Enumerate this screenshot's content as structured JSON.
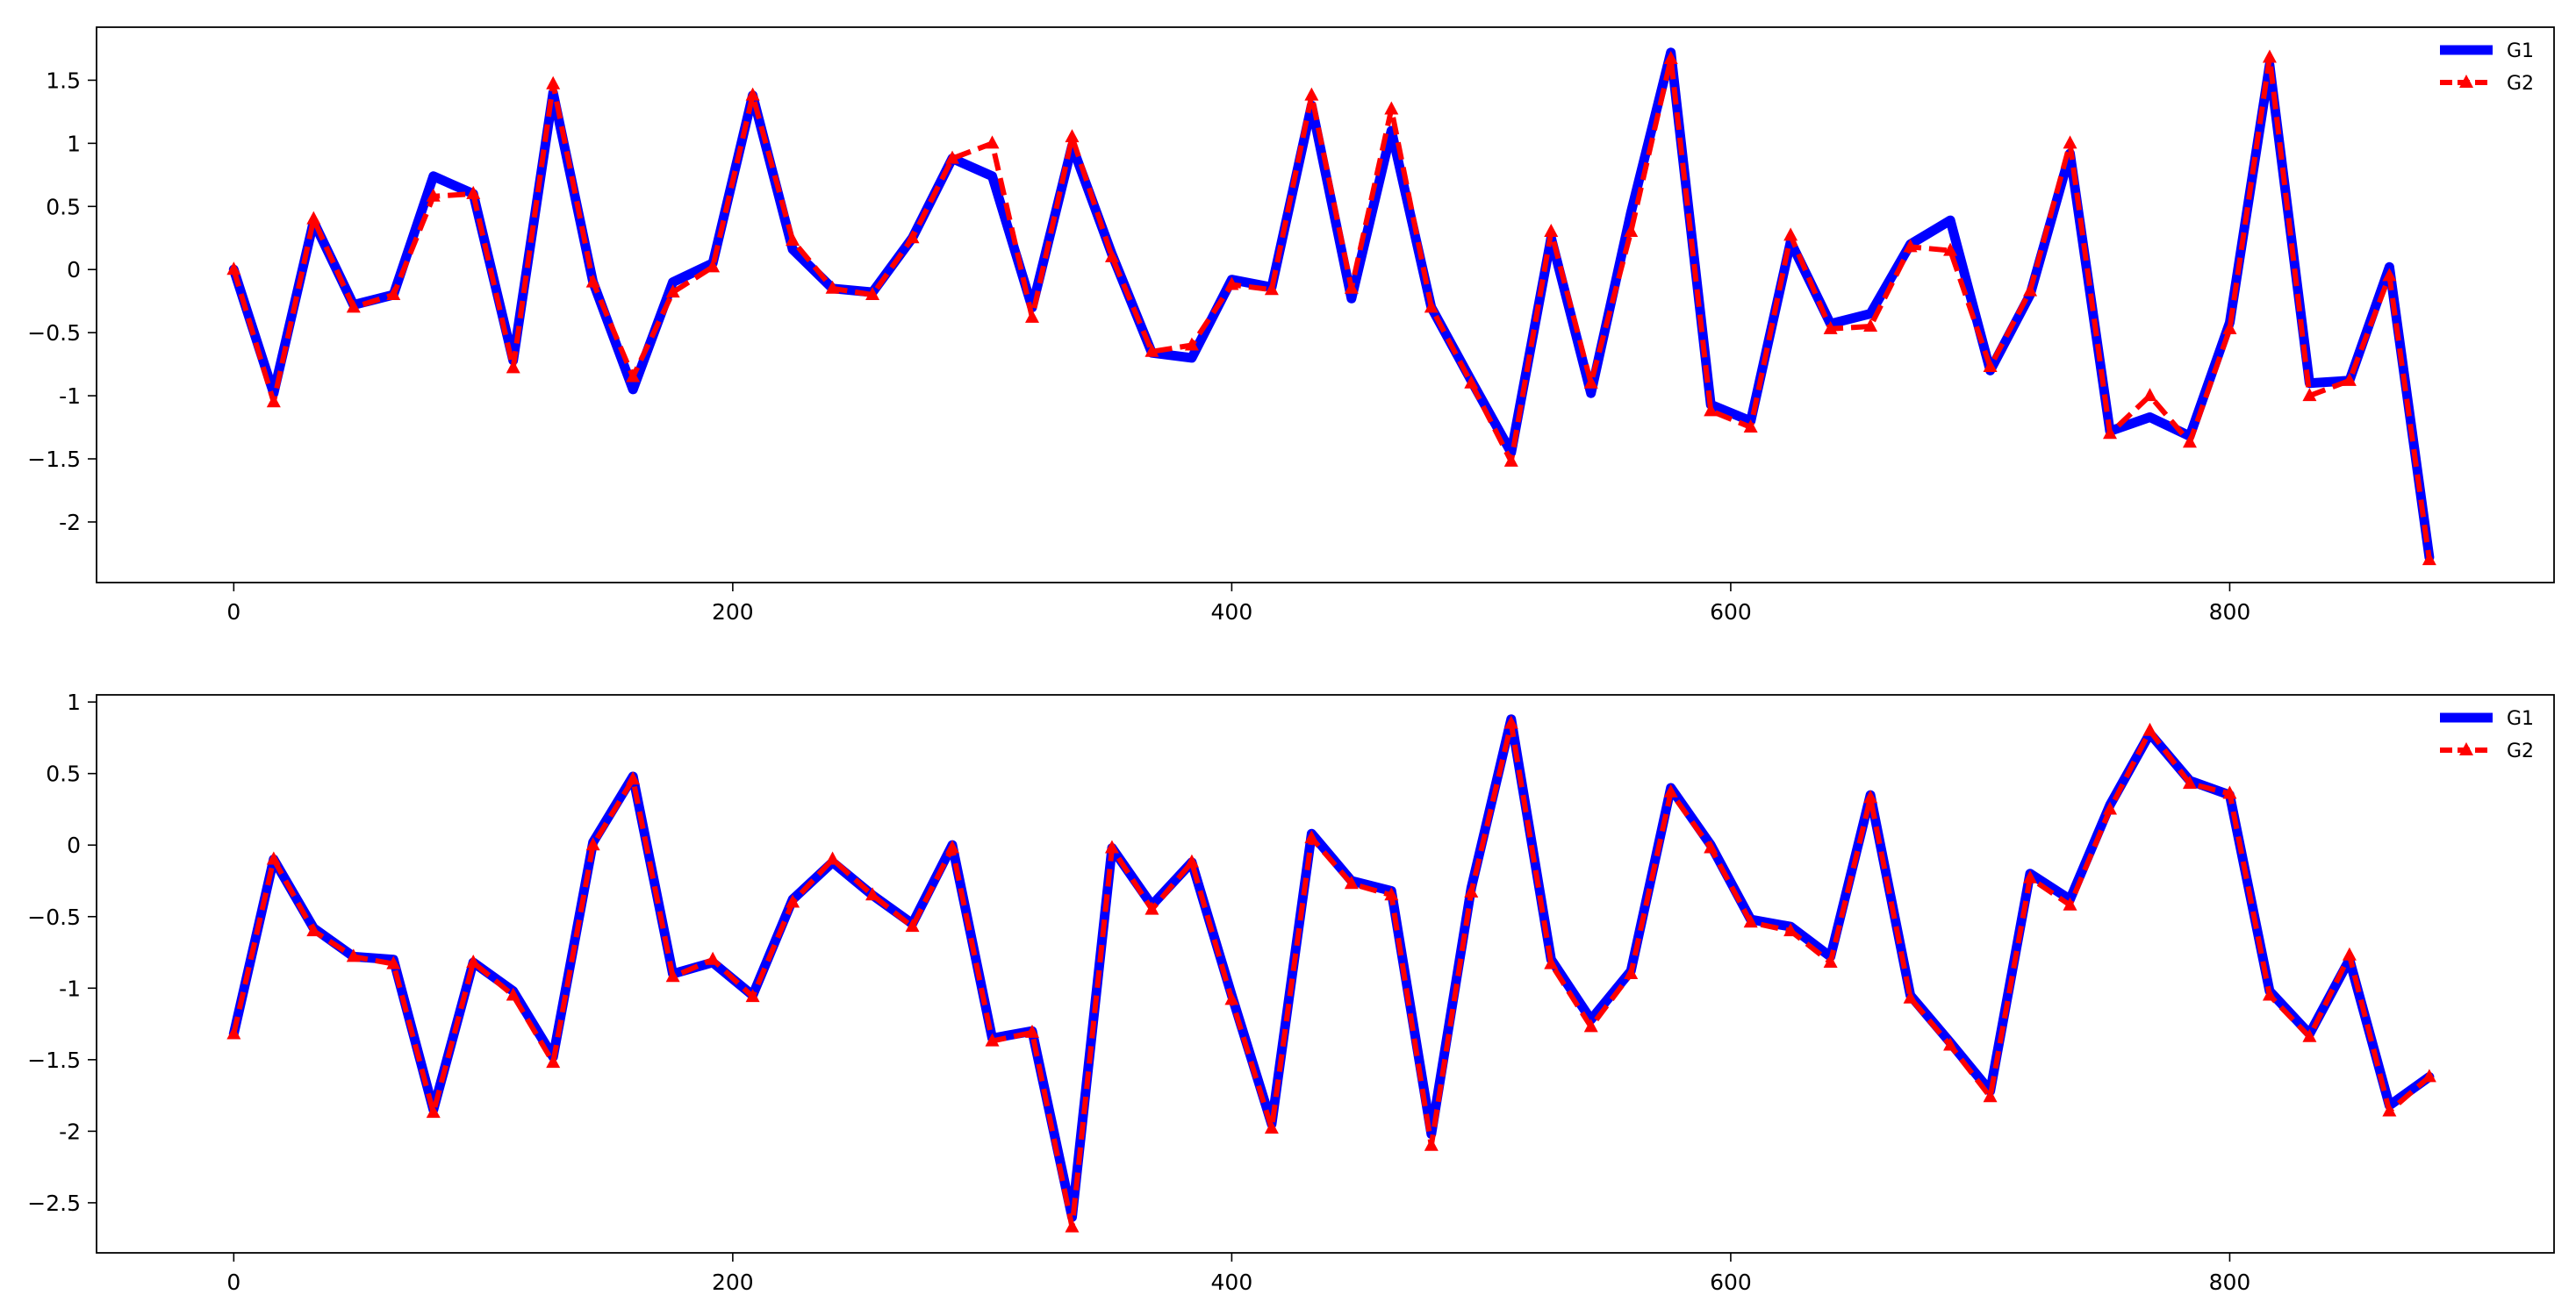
{
  "chart_data": [
    {
      "type": "line",
      "title": "",
      "xlabel": "",
      "ylabel": "",
      "xlim": [
        -55,
        930
      ],
      "ylim": [
        -2.48,
        1.92
      ],
      "xticks": [
        0,
        200,
        400,
        600,
        800
      ],
      "yticks": [
        -2.0,
        -1.5,
        -1.0,
        -0.5,
        0.0,
        0.5,
        1.0,
        1.5
      ],
      "grid": false,
      "legend_position": "top-right",
      "x": [
        0,
        16,
        32,
        48,
        64,
        80,
        96,
        112,
        128,
        144,
        160,
        176,
        192,
        208,
        224,
        240,
        256,
        272,
        288,
        304,
        320,
        336,
        352,
        368,
        384,
        400,
        416,
        432,
        448,
        464,
        480,
        496,
        512,
        528,
        544,
        560,
        576,
        592,
        608,
        624,
        640,
        656,
        672,
        688,
        704,
        720,
        736,
        752,
        768,
        784,
        800,
        816,
        832,
        848,
        864,
        880
      ],
      "series": [
        {
          "name": "G1",
          "color": "#0000ff",
          "style": "solid",
          "values": [
            0.0,
            -0.98,
            0.38,
            -0.28,
            -0.2,
            0.74,
            0.6,
            -0.72,
            1.4,
            -0.1,
            -0.95,
            -0.1,
            0.05,
            1.38,
            0.16,
            -0.15,
            -0.18,
            0.25,
            0.88,
            0.74,
            -0.3,
            0.98,
            0.12,
            -0.66,
            -0.7,
            -0.08,
            -0.14,
            1.3,
            -0.23,
            1.1,
            -0.3,
            -0.88,
            -1.45,
            0.25,
            -0.98,
            0.45,
            1.72,
            -1.07,
            -1.2,
            0.22,
            -0.43,
            -0.35,
            0.2,
            0.39,
            -0.8,
            -0.2,
            0.92,
            -1.28,
            -1.17,
            -1.32,
            -0.42,
            1.62,
            -0.9,
            -0.88,
            0.02,
            -2.28
          ]
        },
        {
          "name": "G2",
          "color": "#ff0000",
          "style": "dashed-triangle",
          "values": [
            0.0,
            -1.05,
            0.4,
            -0.3,
            -0.2,
            0.58,
            0.6,
            -0.78,
            1.47,
            -0.1,
            -0.85,
            -0.18,
            0.02,
            1.38,
            0.23,
            -0.15,
            -0.2,
            0.25,
            0.88,
            1.0,
            -0.38,
            1.05,
            0.1,
            -0.65,
            -0.6,
            -0.12,
            -0.16,
            1.38,
            -0.15,
            1.27,
            -0.3,
            -0.9,
            -1.52,
            0.3,
            -0.9,
            0.3,
            1.67,
            -1.12,
            -1.25,
            0.27,
            -0.47,
            -0.45,
            0.18,
            0.15,
            -0.77,
            -0.17,
            1.0,
            -1.3,
            -1.0,
            -1.37,
            -0.47,
            1.68,
            -1.0,
            -0.88,
            -0.05,
            -2.3
          ]
        }
      ]
    },
    {
      "type": "line",
      "title": "",
      "xlabel": "",
      "ylabel": "",
      "xlim": [
        -55,
        930
      ],
      "ylim": [
        -2.85,
        1.05
      ],
      "xticks": [
        0,
        200,
        400,
        600,
        800
      ],
      "yticks": [
        -2.5,
        -2.0,
        -1.5,
        -1.0,
        -0.5,
        0.0,
        0.5,
        1.0
      ],
      "grid": false,
      "legend_position": "top-right",
      "x": [
        0,
        16,
        32,
        48,
        64,
        80,
        96,
        112,
        128,
        144,
        160,
        176,
        192,
        208,
        224,
        240,
        256,
        272,
        288,
        304,
        320,
        336,
        352,
        368,
        384,
        400,
        416,
        432,
        448,
        464,
        480,
        496,
        512,
        528,
        544,
        560,
        576,
        592,
        608,
        624,
        640,
        656,
        672,
        688,
        704,
        720,
        736,
        752,
        768,
        784,
        800,
        816,
        832,
        848,
        864,
        880
      ],
      "series": [
        {
          "name": "G1",
          "color": "#0000ff",
          "style": "solid",
          "values": [
            -1.32,
            -0.1,
            -0.58,
            -0.78,
            -0.8,
            -1.85,
            -0.82,
            -1.02,
            -1.48,
            0.02,
            0.48,
            -0.9,
            -0.82,
            -1.05,
            -0.38,
            -0.12,
            -0.35,
            -0.55,
            0.0,
            -1.35,
            -1.3,
            -2.6,
            -0.02,
            -0.42,
            -0.12,
            -1.05,
            -1.95,
            0.08,
            -0.25,
            -0.32,
            -2.02,
            -0.3,
            0.88,
            -0.8,
            -1.22,
            -0.88,
            0.4,
            0.0,
            -0.52,
            -0.57,
            -0.78,
            0.35,
            -1.05,
            -1.38,
            -1.72,
            -0.2,
            -0.38,
            0.28,
            0.78,
            0.45,
            0.35,
            -1.02,
            -1.32,
            -0.8,
            -1.82,
            -1.62
          ]
        },
        {
          "name": "G2",
          "color": "#ff0000",
          "style": "dashed-triangle",
          "values": [
            -1.32,
            -0.1,
            -0.6,
            -0.78,
            -0.83,
            -1.87,
            -0.82,
            -1.05,
            -1.52,
            0.0,
            0.46,
            -0.92,
            -0.8,
            -1.06,
            -0.4,
            -0.1,
            -0.35,
            -0.57,
            -0.02,
            -1.37,
            -1.31,
            -2.67,
            -0.02,
            -0.45,
            -0.12,
            -1.08,
            -1.98,
            0.05,
            -0.27,
            -0.35,
            -2.1,
            -0.33,
            0.85,
            -0.83,
            -1.27,
            -0.9,
            0.37,
            -0.02,
            -0.54,
            -0.6,
            -0.82,
            0.33,
            -1.07,
            -1.4,
            -1.76,
            -0.23,
            -0.42,
            0.25,
            0.8,
            0.43,
            0.36,
            -1.05,
            -1.34,
            -0.77,
            -1.86,
            -1.62
          ]
        }
      ]
    }
  ]
}
